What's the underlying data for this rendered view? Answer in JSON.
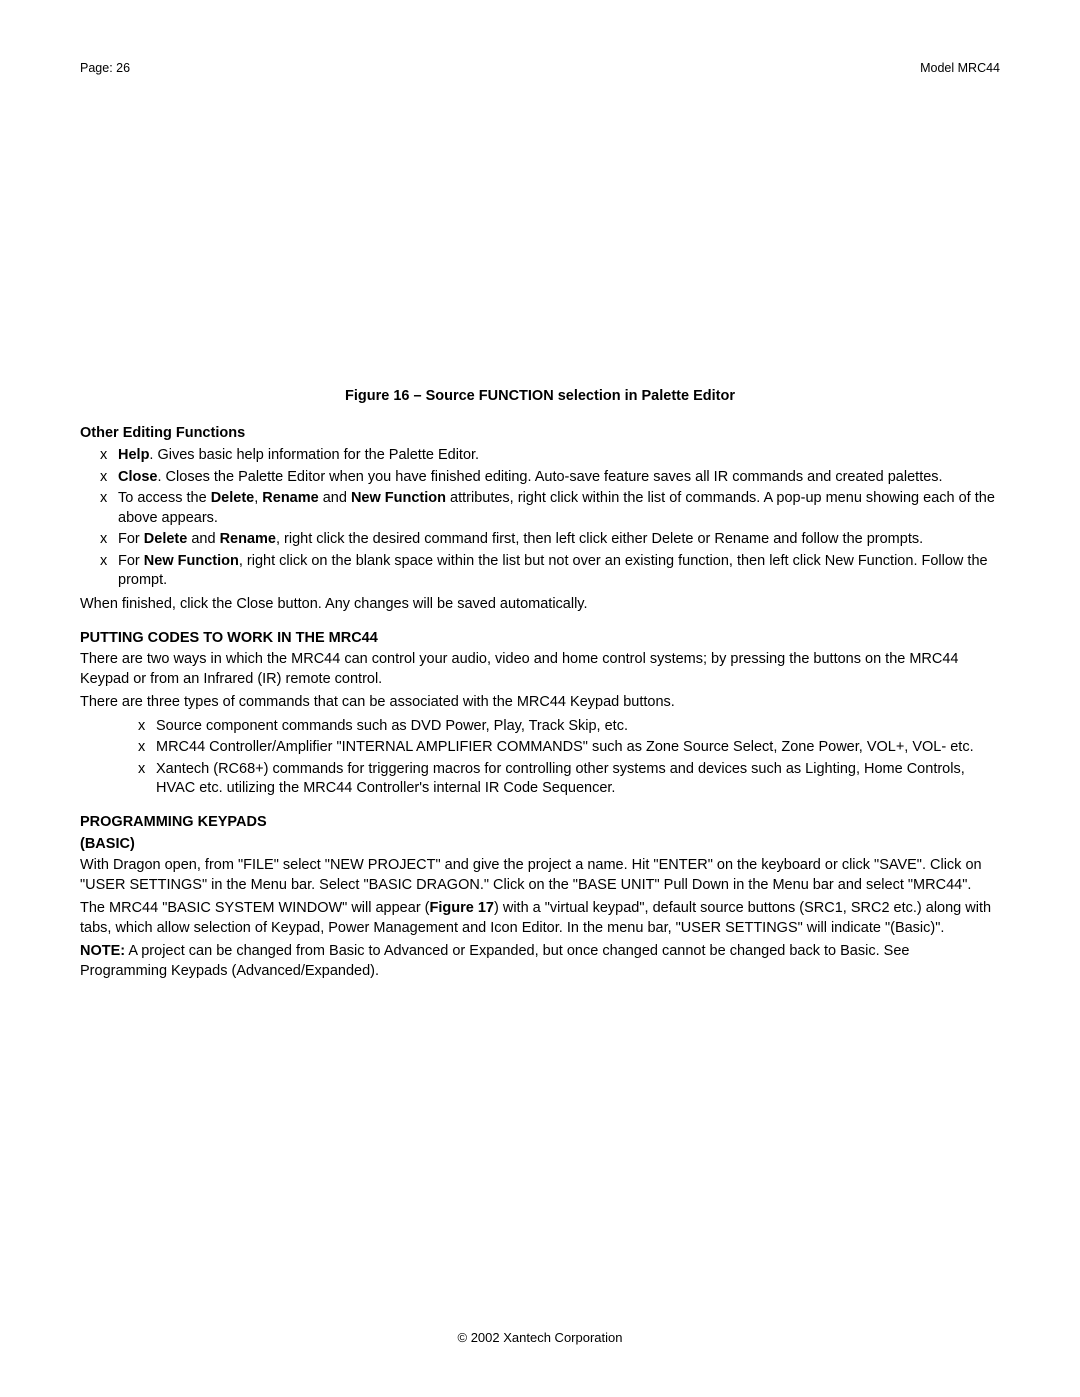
{
  "header": {
    "page_label": "Page: 26",
    "model_label": "Model MRC44"
  },
  "figure_caption": "Figure 16 – Source FUNCTION selection in Palette Editor",
  "section1": {
    "heading": "Other Editing Functions",
    "bullets": [
      {
        "prefix_bold": "Help",
        "rest": ". Gives basic help information for the Palette Editor."
      },
      {
        "prefix_bold": "Close",
        "rest": ". Closes the Palette Editor when you have finished editing.  Auto-save feature saves all IR commands and created palettes."
      },
      {
        "pre": "To access the ",
        "b1": "Delete",
        "mid1": ", ",
        "b2": "Rename",
        "mid2": " and ",
        "b3": "New Function",
        "post": " attributes, right click within the list of commands. A pop-up menu showing each of the above appears."
      },
      {
        "pre": "For ",
        "b1": "Delete",
        "mid1": " and ",
        "b2": "Rename",
        "post": ", right click the desired command first, then left click either Delete or Rename and follow the prompts."
      },
      {
        "pre": "For ",
        "b1": "New Function",
        "post": ", right click on the blank space within the list but not over an existing function, then left click New Function.  Follow the prompt."
      }
    ],
    "after": "When finished, click the Close button. Any changes will be saved automatically."
  },
  "section2": {
    "heading": "PUTTING CODES TO WORK IN THE MRC44",
    "para1": "There are two ways in which the MRC44 can control your audio, video and home control systems; by pressing the buttons on the MRC44 Keypad or from an Infrared (IR) remote control.",
    "para2": "There are three types of commands that can be associated with the MRC44 Keypad buttons.",
    "bullets": [
      "Source component commands such as DVD Power, Play, Track Skip, etc.",
      "MRC44 Controller/Amplifier \"INTERNAL AMPLIFIER COMMANDS\" such as Zone Source Select, Zone Power, VOL+, VOL- etc.",
      "Xantech (RC68+) commands for triggering macros for controlling other systems and devices such as Lighting, Home Controls, HVAC etc. utilizing the MRC44 Controller's internal IR Code Sequencer."
    ]
  },
  "section3": {
    "heading1": "PROGRAMMING KEYPADS",
    "heading2": "(BASIC)",
    "para1": "With Dragon open, from \"FILE\" select \"NEW PROJECT\" and give the project a name. Hit \"ENTER\" on the keyboard or click \"SAVE\". Click on \"USER SETTINGS\" in the Menu bar. Select \"BASIC DRAGON.\" Click on the \"BASE UNIT\" Pull Down in the Menu bar and select \"MRC44\".",
    "para2_pre": "The MRC44 \"BASIC SYSTEM WINDOW\" will appear (",
    "para2_bold": "Figure 17",
    "para2_post": ") with a \"virtual keypad\", default source buttons (SRC1, SRC2 etc.) along with tabs, which allow selection of Keypad, Power Management and Icon Editor. In the menu bar, \"USER SETTINGS\" will indicate \"(Basic)\".",
    "note_bold": "NOTE:",
    "note_rest": " A project can be changed from Basic to Advanced or Expanded, but once changed cannot be changed back to Basic. See Programming Keypads (Advanced/Expanded)."
  },
  "footer": "© 2002 Xantech Corporation"
}
